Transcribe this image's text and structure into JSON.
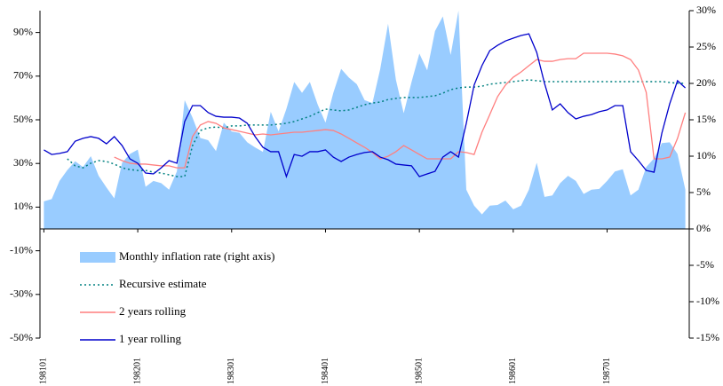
{
  "chart_data": {
    "type": "line",
    "categories": [
      "198101",
      null,
      null,
      null,
      null,
      null,
      null,
      null,
      null,
      null,
      null,
      null,
      "198201",
      null,
      null,
      null,
      null,
      null,
      null,
      null,
      null,
      null,
      null,
      null,
      "198301",
      null,
      null,
      null,
      null,
      null,
      null,
      null,
      null,
      null,
      null,
      null,
      "198401",
      null,
      null,
      null,
      null,
      null,
      null,
      null,
      null,
      null,
      null,
      null,
      "198501",
      null,
      null,
      null,
      null,
      null,
      null,
      null,
      null,
      null,
      null,
      null,
      "198601",
      null,
      null,
      null,
      null,
      null,
      null,
      null,
      null,
      null,
      null,
      null,
      "198701",
      null,
      null,
      null,
      null,
      null,
      null,
      null,
      null,
      null,
      null
    ],
    "ylim": [
      -50,
      100
    ],
    "yticks": [
      {
        "value": -50,
        "label": "-50%"
      },
      {
        "value": -30,
        "label": "-30%"
      },
      {
        "value": -10,
        "label": "-10%"
      },
      {
        "value": 10,
        "label": "10%"
      },
      {
        "value": 30,
        "label": "30%"
      },
      {
        "value": 50,
        "label": "50%"
      },
      {
        "value": 70,
        "label": "70%"
      },
      {
        "value": 90,
        "label": "90%"
      }
    ],
    "y2lim": [
      -15,
      30
    ],
    "y2ticks": [
      {
        "value": -15,
        "label": "-15%"
      },
      {
        "value": -10,
        "label": "-10%"
      },
      {
        "value": -5,
        "label": "-5%"
      },
      {
        "value": 0,
        "label": "0%"
      },
      {
        "value": 5,
        "label": "5%"
      },
      {
        "value": 10,
        "label": "10%"
      },
      {
        "value": 15,
        "label": "15%"
      },
      {
        "value": 20,
        "label": "20%"
      },
      {
        "value": 25,
        "label": "25%"
      },
      {
        "value": 30,
        "label": "30%"
      }
    ],
    "legend": "lower left",
    "series": [
      {
        "name": "Monthly inflation rate (right axis)",
        "type": "area",
        "axis": "y2",
        "color": "#99ccff",
        "values": [
          3.8,
          4.1,
          6.6,
          8.1,
          9.3,
          8.5,
          10.0,
          7.3,
          5.7,
          4.2,
          9.1,
          10.3,
          10.9,
          5.8,
          6.6,
          6.3,
          5.4,
          7.9,
          17.7,
          15.3,
          12.5,
          12.2,
          10.7,
          14.6,
          13.4,
          13.2,
          11.9,
          11.2,
          10.6,
          16.1,
          13.4,
          16.5,
          20.2,
          18.7,
          20.2,
          17.1,
          14.6,
          18.7,
          22.0,
          20.8,
          19.9,
          17.7,
          17.3,
          22.0,
          28.2,
          20.5,
          15.9,
          20.2,
          24.1,
          21.8,
          27.2,
          29.2,
          23.9,
          30.0,
          5.4,
          3.2,
          2.0,
          3.2,
          3.3,
          3.9,
          2.7,
          3.2,
          5.4,
          9.1,
          4.4,
          4.6,
          6.3,
          7.3,
          6.6,
          4.8,
          5.4,
          5.5,
          6.6,
          7.9,
          8.2,
          4.6,
          5.4,
          8.5,
          9.7,
          11.8,
          11.9,
          10.3,
          5.4
        ]
      },
      {
        "name": "Recursive estimate",
        "type": "line",
        "style": "dotted",
        "color": "#008080",
        "values": [
          null,
          null,
          null,
          32.1,
          28.9,
          28.0,
          30.1,
          31.3,
          30.9,
          29.7,
          28.0,
          27.2,
          26.8,
          26.8,
          26.0,
          25.6,
          24.8,
          24.0,
          24.0,
          38.2,
          45.1,
          46.3,
          46.7,
          46.3,
          47.2,
          47.2,
          47.6,
          47.6,
          47.6,
          47.6,
          48.0,
          48.4,
          49.2,
          50.4,
          51.6,
          53.3,
          54.9,
          54.5,
          54.1,
          54.5,
          55.7,
          56.9,
          57.7,
          58.1,
          59.3,
          59.8,
          60.2,
          60.2,
          60.2,
          60.6,
          61.0,
          62.2,
          63.8,
          64.6,
          65.0,
          65.0,
          65.4,
          66.3,
          66.7,
          67.1,
          67.5,
          67.9,
          68.3,
          67.9,
          67.5,
          67.5,
          67.5,
          67.5,
          67.5,
          67.5,
          67.5,
          67.5,
          67.5,
          67.5,
          67.5,
          67.5,
          67.5,
          67.5,
          67.5,
          67.5,
          67.1,
          66.7,
          66.7
        ]
      },
      {
        "name": "2 years rolling",
        "type": "line",
        "style": "solid",
        "color": "#ff7f7f",
        "values": [
          null,
          null,
          null,
          null,
          null,
          null,
          null,
          null,
          null,
          32.9,
          31.3,
          30.1,
          29.7,
          29.7,
          29.3,
          28.9,
          28.9,
          28.0,
          28.0,
          42.3,
          47.6,
          49.2,
          48.4,
          46.3,
          45.5,
          44.7,
          43.9,
          43.1,
          43.5,
          43.1,
          43.5,
          43.9,
          44.3,
          44.3,
          44.7,
          45.1,
          45.5,
          45.1,
          43.5,
          41.5,
          39.4,
          37.4,
          35.0,
          32.1,
          33.3,
          35.4,
          38.2,
          36.2,
          34.1,
          32.1,
          32.1,
          32.1,
          32.1,
          35.4,
          35.0,
          34.1,
          44.3,
          52.4,
          60.6,
          65.9,
          69.5,
          71.9,
          74.8,
          77.6,
          76.8,
          76.8,
          77.6,
          78.0,
          78.0,
          80.5,
          80.5,
          80.5,
          80.5,
          80.1,
          79.3,
          77.6,
          72.8,
          62.6,
          32.1,
          32.1,
          32.9,
          41.5,
          53.3
        ]
      },
      {
        "name": "1 year rolling",
        "type": "line",
        "style": "solid",
        "color": "#0000cc",
        "values": [
          36.2,
          34.1,
          34.6,
          35.4,
          40.2,
          41.5,
          42.3,
          41.5,
          39.0,
          42.3,
          38.2,
          32.1,
          30.1,
          25.6,
          25.2,
          28.0,
          31.3,
          30.1,
          49.2,
          56.5,
          56.5,
          53.3,
          51.6,
          51.2,
          51.2,
          50.8,
          48.4,
          42.3,
          37.4,
          35.4,
          35.4,
          24.0,
          34.1,
          33.3,
          35.4,
          35.4,
          36.2,
          32.9,
          30.9,
          32.9,
          34.1,
          35.0,
          35.4,
          32.9,
          31.7,
          29.7,
          29.3,
          28.9,
          24.0,
          25.2,
          26.4,
          32.9,
          35.4,
          32.9,
          48.4,
          65.9,
          74.8,
          81.7,
          84.1,
          86.1,
          87.4,
          88.6,
          89.4,
          80.9,
          66.7,
          54.5,
          57.3,
          53.3,
          50.4,
          51.6,
          52.4,
          53.7,
          54.5,
          56.5,
          56.5,
          35.4,
          31.3,
          26.8,
          26.0,
          43.9,
          57.3,
          67.9,
          64.6
        ]
      }
    ]
  }
}
